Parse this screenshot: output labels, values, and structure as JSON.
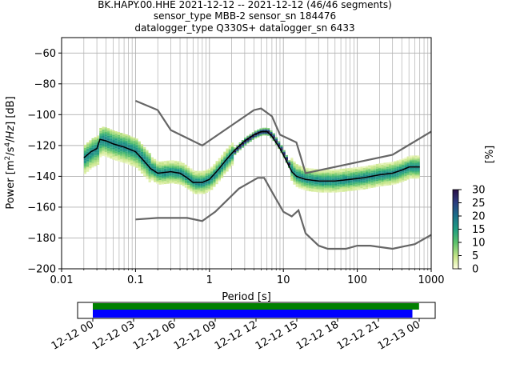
{
  "title_lines": [
    "BK.HAPY.00.HHE   2021-12-12 -- 2021-12-12  (46/46 segments)",
    "sensor_type MBB-2 sensor_sn 184476",
    "datalogger_type Q330S+ datalogger_sn 6433"
  ],
  "colorbar": {
    "label": "[%]",
    "ticks": [
      "0",
      "5",
      "10",
      "15",
      "20",
      "25",
      "30"
    ],
    "range": [
      0,
      30
    ]
  },
  "colors": {
    "mode_line": "#000000",
    "noise_models": "#666666",
    "coverage_segments": "#008000",
    "coverage_gaps": "#0000ff",
    "grid": "#b0b0b0"
  },
  "chart_data": {
    "type": "heatmap",
    "xlabel": "Period [s]",
    "ylabel": "Power [m^2/s^4/Hz] [dB]",
    "x_scale": "log",
    "xlim": [
      0.01,
      1000
    ],
    "ylim": [
      -200,
      -50
    ],
    "grid": true,
    "x_ticks": [
      "0.01",
      "0.1",
      "1",
      "10",
      "100",
      "1000"
    ],
    "y_ticks": [
      "−200",
      "−180",
      "−160",
      "−140",
      "−120",
      "−100",
      "−80",
      "−60"
    ],
    "series": [
      {
        "role": "mode",
        "points": [
          [
            0.02,
            -128
          ],
          [
            0.025,
            -124
          ],
          [
            0.03,
            -122
          ],
          [
            0.033,
            -116
          ],
          [
            0.04,
            -117
          ],
          [
            0.05,
            -119
          ],
          [
            0.07,
            -121
          ],
          [
            0.1,
            -124
          ],
          [
            0.13,
            -130
          ],
          [
            0.16,
            -135
          ],
          [
            0.2,
            -138
          ],
          [
            0.3,
            -137
          ],
          [
            0.4,
            -138
          ],
          [
            0.5,
            -141
          ],
          [
            0.6,
            -144
          ],
          [
            0.8,
            -144
          ],
          [
            1.0,
            -142
          ],
          [
            1.3,
            -136
          ],
          [
            1.7,
            -129
          ],
          [
            2.2,
            -123
          ],
          [
            3,
            -117
          ],
          [
            4,
            -113
          ],
          [
            5,
            -111
          ],
          [
            6,
            -111
          ],
          [
            7,
            -114
          ],
          [
            9,
            -122
          ],
          [
            11,
            -130
          ],
          [
            13,
            -137
          ],
          [
            15,
            -140
          ],
          [
            20,
            -142
          ],
          [
            30,
            -143
          ],
          [
            50,
            -143
          ],
          [
            80,
            -142
          ],
          [
            120,
            -141
          ],
          [
            200,
            -139
          ],
          [
            300,
            -138
          ],
          [
            400,
            -136
          ],
          [
            500,
            -134
          ],
          [
            700,
            -134
          ]
        ]
      },
      {
        "role": "noise_model_upper",
        "points": [
          [
            0.1,
            -91
          ],
          [
            0.2,
            -97
          ],
          [
            0.3,
            -110
          ],
          [
            0.8,
            -120
          ],
          [
            4,
            -97
          ],
          [
            5,
            -96
          ],
          [
            7,
            -101
          ],
          [
            9,
            -113
          ],
          [
            15,
            -118
          ],
          [
            20,
            -138
          ],
          [
            300,
            -126
          ],
          [
            1000,
            -111
          ]
        ]
      },
      {
        "role": "noise_model_lower",
        "points": [
          [
            0.1,
            -168
          ],
          [
            0.2,
            -167
          ],
          [
            0.5,
            -167
          ],
          [
            0.8,
            -169
          ],
          [
            1.2,
            -163
          ],
          [
            2.5,
            -148
          ],
          [
            4.5,
            -141
          ],
          [
            5.5,
            -141
          ],
          [
            7,
            -150
          ],
          [
            10,
            -163
          ],
          [
            13,
            -166
          ],
          [
            16,
            -162
          ],
          [
            20,
            -177
          ],
          [
            30,
            -185
          ],
          [
            40,
            -187
          ],
          [
            70,
            -187
          ],
          [
            100,
            -185
          ],
          [
            150,
            -185
          ],
          [
            300,
            -187
          ],
          [
            600,
            -184
          ],
          [
            1000,
            -178
          ]
        ]
      }
    ],
    "coverage": {
      "x_ticks": [
        "12-12 00",
        "12-12 03",
        "12-12 06",
        "12-12 09",
        "12-12 12",
        "12-12 15",
        "12-12 18",
        "12-12 21",
        "12-13 00"
      ],
      "data_span_hours": [
        0,
        24.4
      ],
      "psd_span_hours": [
        0,
        23.5
      ]
    }
  }
}
